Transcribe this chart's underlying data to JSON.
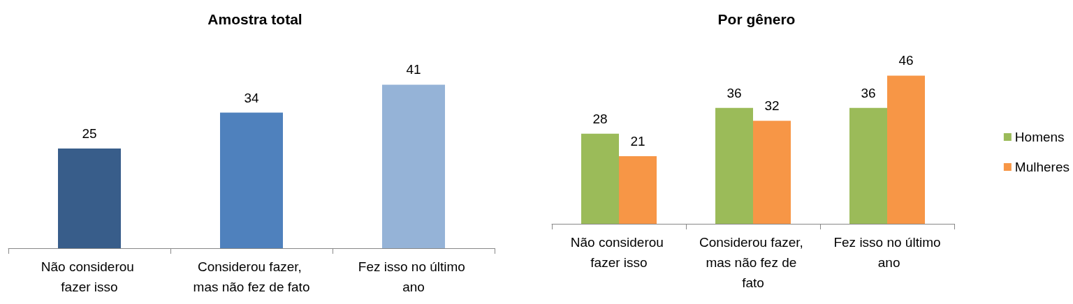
{
  "chart_data": [
    {
      "type": "bar",
      "title": "Amostra total",
      "categories": [
        "Não considerou fazer isso",
        "Considerou fazer, mas não fez de fato",
        "Fez isso no último ano"
      ],
      "values": [
        25,
        34,
        41
      ],
      "colors": [
        "#385d8a",
        "#4f81bd",
        "#95b3d7"
      ],
      "data_labels": true,
      "legend": false
    },
    {
      "type": "bar",
      "title": "Por gênero",
      "categories": [
        "Não considerou fazer isso",
        "Considerou fazer, mas não fez de fato",
        "Fez isso no último ano"
      ],
      "series": [
        {
          "name": "Homens",
          "color": "#9bbb59",
          "values": [
            28,
            36,
            36
          ]
        },
        {
          "name": "Mulheres",
          "color": "#f79646",
          "values": [
            21,
            32,
            46
          ]
        }
      ],
      "data_labels": true,
      "legend": "right"
    }
  ]
}
